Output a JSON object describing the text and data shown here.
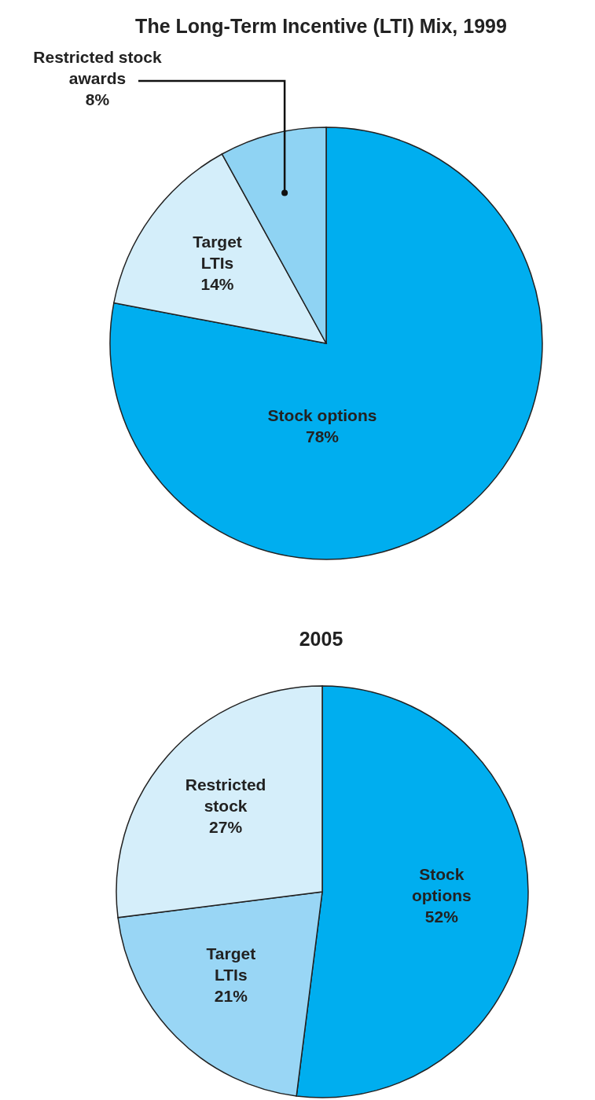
{
  "chart_data": [
    {
      "type": "pie",
      "title": "The Long-Term Incentive (LTI) Mix, 1999",
      "categories": [
        "Stock options",
        "Target LTIs",
        "Restricted stock awards"
      ],
      "values": [
        78,
        14,
        8
      ],
      "colors": [
        "#00aeef",
        "#d4eefa",
        "#8fd3f3"
      ],
      "value_labels": [
        "78%",
        "14%",
        "8%"
      ]
    },
    {
      "type": "pie",
      "title": "2005",
      "categories": [
        "Stock options",
        "Target LTIs",
        "Restricted stock"
      ],
      "values": [
        52,
        21,
        27
      ],
      "colors": [
        "#00aeef",
        "#99d6f5",
        "#d5eefa"
      ],
      "value_labels": [
        "52%",
        "21%",
        "27%"
      ]
    }
  ]
}
